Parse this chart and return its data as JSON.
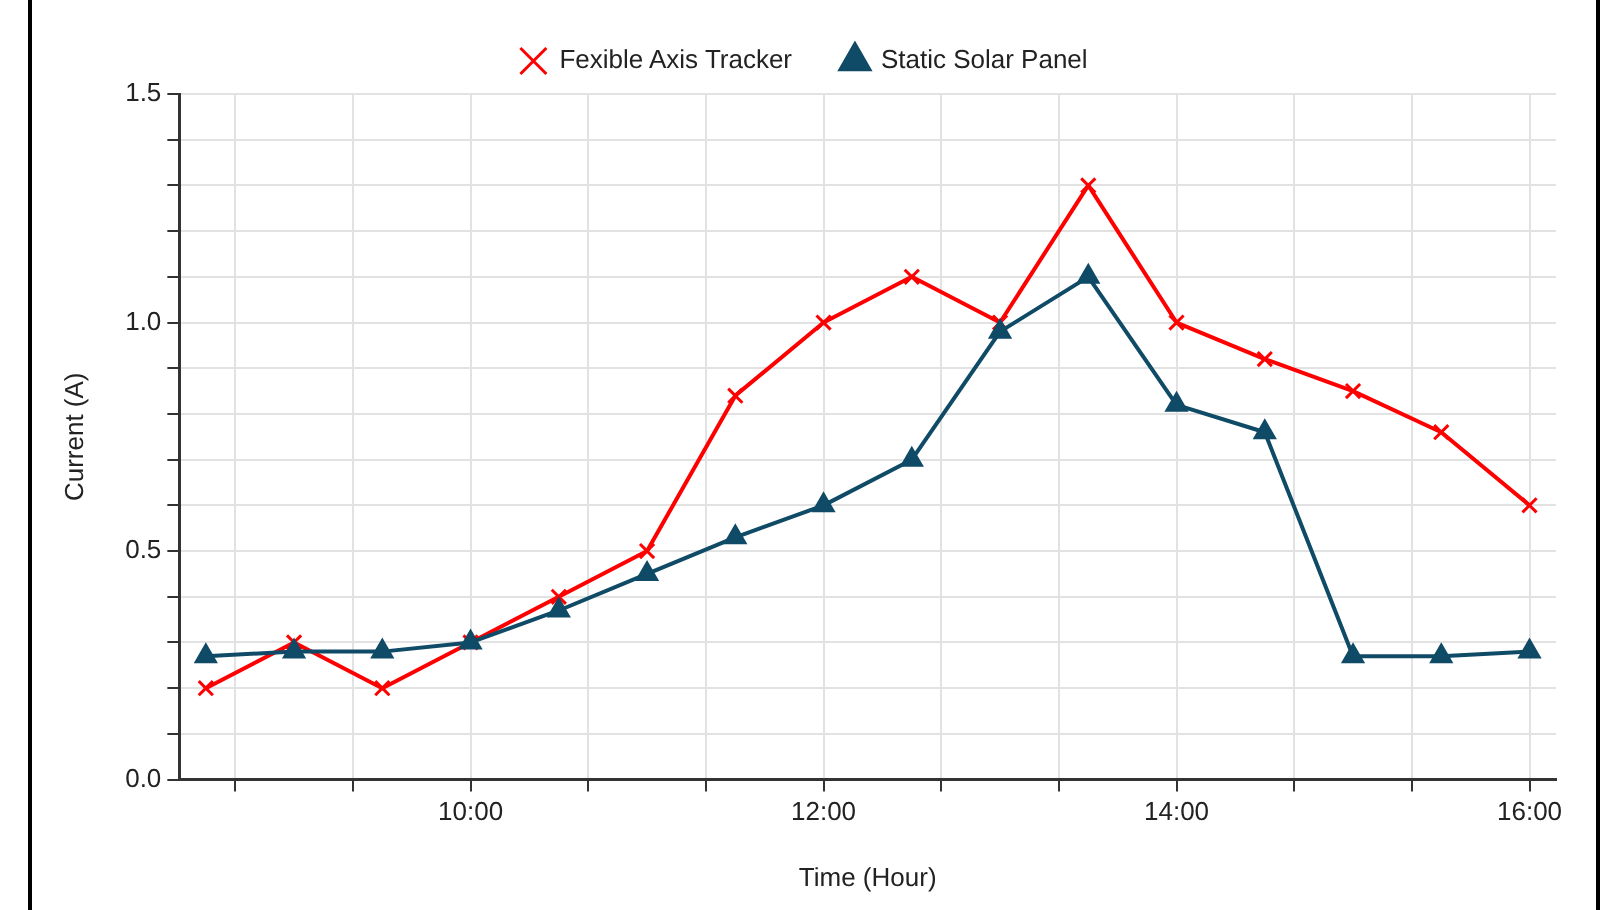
{
  "chart_data": {
    "type": "line",
    "xlabel": "Time (Hour)",
    "ylabel": "Current (A)",
    "x": [
      8.5,
      9,
      9.5,
      10,
      10.5,
      11,
      11.5,
      12,
      12.5,
      13,
      13.5,
      14,
      14.5,
      15,
      15.5,
      16
    ],
    "series": [
      {
        "name": "Fexible Axis Tracker",
        "color": "#ff0000",
        "marker": "cross",
        "values": [
          0.2,
          0.3,
          0.2,
          0.3,
          0.4,
          0.5,
          0.84,
          1.0,
          1.1,
          1.0,
          1.3,
          1.0,
          0.92,
          0.85,
          0.76,
          0.6
        ]
      },
      {
        "name": "Static Solar Panel",
        "color": "#0f4a66",
        "marker": "triangle",
        "values": [
          0.27,
          0.28,
          0.28,
          0.3,
          0.37,
          0.45,
          0.53,
          0.6,
          0.7,
          0.98,
          1.1,
          0.82,
          0.76,
          0.27,
          0.27,
          0.28
        ]
      }
    ],
    "xlim": [
      8.35,
      16.15
    ],
    "xticks": [
      {
        "value": 8.667,
        "label": null
      },
      {
        "value": 9.333,
        "label": null
      },
      {
        "value": 10,
        "label": "10:00"
      },
      {
        "value": 10.667,
        "label": null
      },
      {
        "value": 11.333,
        "label": null
      },
      {
        "value": 12,
        "label": "12:00"
      },
      {
        "value": 12.667,
        "label": null
      },
      {
        "value": 13.333,
        "label": null
      },
      {
        "value": 14,
        "label": "14:00"
      },
      {
        "value": 14.667,
        "label": null
      },
      {
        "value": 15.333,
        "label": null
      },
      {
        "value": 16,
        "label": "16:00"
      }
    ],
    "ylim": [
      0,
      1.5
    ],
    "yticks": [
      {
        "value": 0,
        "label": "0.0"
      },
      {
        "value": 0.1,
        "label": null
      },
      {
        "value": 0.2,
        "label": null
      },
      {
        "value": 0.3,
        "label": null
      },
      {
        "value": 0.4,
        "label": null
      },
      {
        "value": 0.5,
        "label": "0.5"
      },
      {
        "value": 0.6,
        "label": null
      },
      {
        "value": 0.7,
        "label": null
      },
      {
        "value": 0.8,
        "label": null
      },
      {
        "value": 0.9,
        "label": null
      },
      {
        "value": 1.0,
        "label": "1.0"
      },
      {
        "value": 1.1,
        "label": null
      },
      {
        "value": 1.2,
        "label": null
      },
      {
        "value": 1.3,
        "label": null
      },
      {
        "value": 1.4,
        "label": null
      },
      {
        "value": 1.5,
        "label": "1.5"
      }
    ],
    "grid": true,
    "legend": "top",
    "line_style": "solid"
  }
}
